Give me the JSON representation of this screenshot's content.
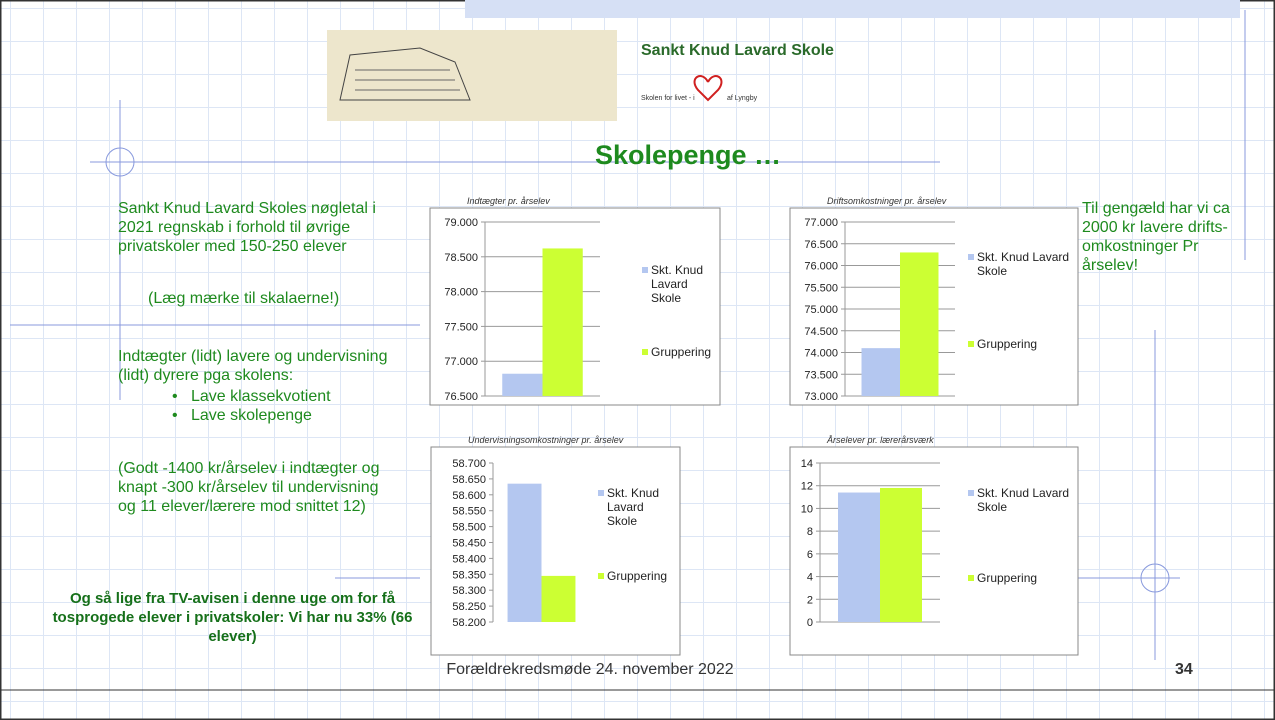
{
  "logo": {
    "title": "Sankt Knud Lavard Skole",
    "tagline_start": "Skolen for livet - i",
    "tagline_end": "af Lyngby"
  },
  "title": "Skolepenge …",
  "left": {
    "intro": "Sankt Knud Lavard Skoles nøgletal i 2021 regnskab i forhold til øvrige privatskoler med 150-250 elever",
    "note": "(Læg mærke til skalaerne!)",
    "reasons": "Indtægter (lidt) lavere og undervisning (lidt) dyrere pga skolens:",
    "bullets": [
      "Lave klassekvotient",
      "Lave skolepenge"
    ],
    "detail": "(Godt -1400 kr/årselev i indtægter og knapt -300 kr/årselev til undervisning og 11 elever/lærere mod snittet 12)",
    "highlight": "Og så lige fra TV-avisen i denne uge om for få tosprogede elever i privatskoler: Vi har nu 33% (66 elever)"
  },
  "right": "Til gengæld har vi ca 2000 kr lavere drifts-omkostninger Pr årselev!",
  "footer": "Forældrekredsmøde 24. november 2022",
  "page_number": "34",
  "chart_data": [
    {
      "type": "bar",
      "title": "Indtægter pr. årselev",
      "categories": [
        null
      ],
      "series": [
        {
          "name": "Skt. Knud Lavard Skole",
          "color": "#b4c7f0",
          "values": [
            76820
          ]
        },
        {
          "name": "Gruppering",
          "color": "#ccff33",
          "values": [
            78620
          ]
        }
      ],
      "ylim": [
        76500,
        79000
      ],
      "grid": true,
      "yticks": [
        {
          "value": 76500,
          "label": "76.500"
        },
        {
          "value": 77000,
          "label": "77.000"
        },
        {
          "value": 77500,
          "label": "77.500"
        },
        {
          "value": 78000,
          "label": "78.000"
        },
        {
          "value": 78500,
          "label": "78.500"
        },
        {
          "value": 79000,
          "label": "79.000"
        }
      ]
    },
    {
      "type": "bar",
      "title": "Driftsomkostninger pr. årselev",
      "categories": [
        null
      ],
      "series": [
        {
          "name": "Skt. Knud Lavard Skole",
          "color": "#b4c7f0",
          "values": [
            74100
          ]
        },
        {
          "name": "Gruppering",
          "color": "#ccff33",
          "values": [
            76300
          ]
        }
      ],
      "ylim": [
        73000,
        77000
      ],
      "grid": true,
      "yticks": [
        {
          "value": 73000,
          "label": "73.000"
        },
        {
          "value": 73500,
          "label": "73.500"
        },
        {
          "value": 74000,
          "label": "74.000"
        },
        {
          "value": 74500,
          "label": "74.500"
        },
        {
          "value": 75000,
          "label": "75.000"
        },
        {
          "value": 75500,
          "label": "75.500"
        },
        {
          "value": 76000,
          "label": "76.000"
        },
        {
          "value": 76500,
          "label": "76.500"
        },
        {
          "value": 77000,
          "label": "77.000"
        }
      ]
    },
    {
      "type": "bar",
      "title": "Undervisningsomkostninger pr. årselev",
      "categories": [
        null
      ],
      "series": [
        {
          "name": "Skt. Knud Lavard Skole",
          "color": "#b4c7f0",
          "values": [
            58635
          ]
        },
        {
          "name": "Gruppering",
          "color": "#ccff33",
          "values": [
            58345
          ]
        }
      ],
      "ylim": [
        58200,
        58700
      ],
      "grid": false,
      "yticks": [
        {
          "value": 58200,
          "label": "58.200"
        },
        {
          "value": 58250,
          "label": "58.250"
        },
        {
          "value": 58300,
          "label": "58.300"
        },
        {
          "value": 58350,
          "label": "58.350"
        },
        {
          "value": 58400,
          "label": "58.400"
        },
        {
          "value": 58450,
          "label": "58.450"
        },
        {
          "value": 58500,
          "label": "58.500"
        },
        {
          "value": 58550,
          "label": "58.550"
        },
        {
          "value": 58600,
          "label": "58.600"
        },
        {
          "value": 58650,
          "label": "58.650"
        },
        {
          "value": 58700,
          "label": "58.700"
        }
      ]
    },
    {
      "type": "bar",
      "title": "Årselever pr. lærerårsværk",
      "categories": [
        null
      ],
      "series": [
        {
          "name": "Skt. Knud Lavard Skole",
          "color": "#b4c7f0",
          "values": [
            11.4
          ]
        },
        {
          "name": "Gruppering",
          "color": "#ccff33",
          "values": [
            11.8
          ]
        }
      ],
      "ylim": [
        0,
        14
      ],
      "grid": true,
      "yticks": [
        0,
        2,
        4,
        6,
        8,
        10,
        12,
        14
      ]
    }
  ]
}
